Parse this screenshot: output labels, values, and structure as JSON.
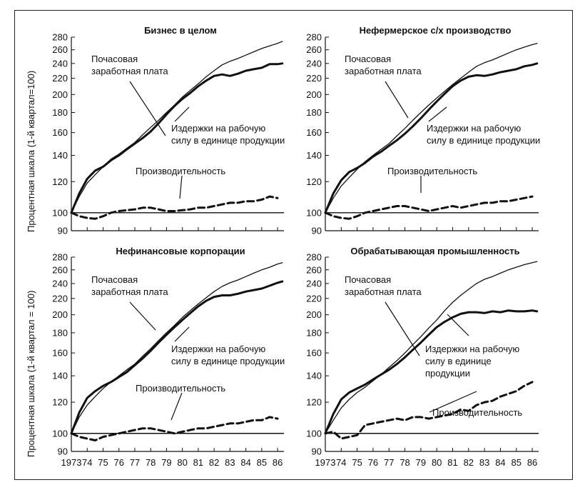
{
  "figure": {
    "ylabel_top": "Процентная шкала (1-й квартал=100)",
    "ylabel_bottom": "Процентная шкала (1-й квартал = 100)"
  },
  "chart_data": [
    {
      "type": "line",
      "title": "Бизнес в целом",
      "ylabel": "Процентная шкала (1-й квартал=100)",
      "yscale": "log",
      "ylim": [
        90,
        280
      ],
      "yticks": [
        90,
        100,
        120,
        140,
        160,
        180,
        200,
        220,
        240,
        260,
        280
      ],
      "xlim": [
        1973,
        1986.4
      ],
      "xticks": [
        "1973",
        "74",
        "75",
        "76",
        "77",
        "78",
        "79",
        "80",
        "81",
        "82",
        "83",
        "84",
        "85",
        "86"
      ],
      "show_xtick_labels": false,
      "series": [
        {
          "name": "Почасовая заработная плата",
          "style": "thin",
          "x": [
            1973,
            1973.5,
            1974,
            1974.5,
            1975,
            1975.5,
            1976,
            1976.5,
            1977,
            1977.5,
            1978,
            1978.5,
            1979,
            1979.5,
            1980,
            1980.5,
            1981,
            1981.5,
            1982,
            1982.5,
            1983,
            1983.5,
            1984,
            1984.5,
            1985,
            1985.5,
            1986,
            1986.3
          ],
          "values": [
            100,
            110,
            119,
            125,
            131,
            137,
            141,
            146,
            151,
            158,
            165,
            172,
            180,
            188,
            197,
            205,
            213,
            222,
            230,
            238,
            243,
            247,
            252,
            257,
            262,
            266,
            270,
            273
          ]
        },
        {
          "name": "Издержки на рабочую силу в единице продукции",
          "style": "thick",
          "x": [
            1973,
            1973.5,
            1974,
            1974.5,
            1975,
            1975.5,
            1976,
            1976.5,
            1977,
            1977.5,
            1978,
            1978.5,
            1979,
            1979.5,
            1980,
            1980.5,
            1981,
            1981.5,
            1982,
            1982.5,
            1983,
            1983.5,
            1984,
            1984.5,
            1985,
            1985.5,
            1986,
            1986.3
          ],
          "values": [
            100,
            112,
            122,
            128,
            131,
            136,
            140,
            145,
            150,
            155,
            161,
            169,
            178,
            187,
            195,
            202,
            210,
            217,
            223,
            225,
            223,
            226,
            230,
            232,
            234,
            239,
            239,
            240
          ]
        },
        {
          "name": "Производительность",
          "style": "dashed",
          "x": [
            1973,
            1973.5,
            1974,
            1974.5,
            1975,
            1975.5,
            1976,
            1976.5,
            1977,
            1977.5,
            1978,
            1978.5,
            1979,
            1979.5,
            1980,
            1980.5,
            1981,
            1981.5,
            1982,
            1982.5,
            1983,
            1983.5,
            1984,
            1984.5,
            1985,
            1985.5,
            1986
          ],
          "values": [
            100,
            98,
            97,
            96.5,
            98,
            100,
            101,
            101.5,
            102,
            103,
            103,
            102,
            101,
            101,
            101.5,
            102,
            103,
            103,
            104,
            105,
            106,
            106,
            107,
            107,
            108,
            110,
            109
          ]
        }
      ]
    },
    {
      "type": "line",
      "title": "Нефермерское с/х производство",
      "yscale": "log",
      "ylim": [
        90,
        280
      ],
      "yticks": [
        90,
        100,
        120,
        140,
        160,
        180,
        200,
        220,
        240,
        260,
        280
      ],
      "xlim": [
        1973,
        1986.4
      ],
      "xticks": [
        "1973",
        "74",
        "75",
        "76",
        "77",
        "78",
        "79",
        "80",
        "81",
        "82",
        "83",
        "84",
        "85",
        "86"
      ],
      "show_xtick_labels": false,
      "series": [
        {
          "name": "Почасовая заработная плата",
          "style": "thin",
          "x": [
            1973,
            1973.5,
            1974,
            1974.5,
            1975,
            1975.5,
            1976,
            1976.5,
            1977,
            1977.5,
            1978,
            1978.5,
            1979,
            1979.5,
            1980,
            1980.5,
            1981,
            1981.5,
            1982,
            1982.5,
            1983,
            1983.5,
            1984,
            1984.5,
            1985,
            1985.5,
            1986,
            1986.3
          ],
          "values": [
            100,
            109,
            117,
            123,
            129,
            135,
            140,
            145,
            150,
            157,
            164,
            172,
            180,
            188,
            196,
            204,
            212,
            220,
            228,
            236,
            241,
            245,
            250,
            255,
            260,
            264,
            268,
            270
          ]
        },
        {
          "name": "Издержки на рабочую силу в единице продукции",
          "style": "thick",
          "x": [
            1973,
            1973.5,
            1974,
            1974.5,
            1975,
            1975.5,
            1976,
            1976.5,
            1977,
            1977.5,
            1978,
            1978.5,
            1979,
            1979.5,
            1980,
            1980.5,
            1981,
            1981.5,
            1982,
            1982.5,
            1983,
            1983.5,
            1984,
            1984.5,
            1985,
            1985.5,
            1986,
            1986.3
          ],
          "values": [
            100,
            112,
            121,
            127,
            130,
            134,
            139,
            143,
            148,
            153,
            159,
            166,
            174,
            183,
            192,
            201,
            210,
            217,
            222,
            224,
            223,
            225,
            228,
            230,
            232,
            236,
            238,
            240
          ]
        },
        {
          "name": "Производительность",
          "style": "dashed",
          "x": [
            1973,
            1973.5,
            1974,
            1974.5,
            1975,
            1975.5,
            1976,
            1976.5,
            1977,
            1977.5,
            1978,
            1978.5,
            1979,
            1979.5,
            1980,
            1980.5,
            1981,
            1981.5,
            1982,
            1982.5,
            1983,
            1983.5,
            1984,
            1984.5,
            1985,
            1985.5,
            1986
          ],
          "values": [
            100,
            98,
            97,
            96.5,
            98,
            100,
            101,
            102,
            103,
            104,
            104,
            103,
            102,
            101,
            102,
            103,
            104,
            103,
            104,
            105,
            106,
            106,
            107,
            107,
            108,
            109,
            110
          ]
        }
      ]
    },
    {
      "type": "line",
      "title": "Нефинансовые корпорации",
      "ylabel": "Процентная шкала (1-й квартал = 100)",
      "yscale": "log",
      "ylim": [
        90,
        280
      ],
      "yticks": [
        90,
        100,
        120,
        140,
        160,
        180,
        200,
        220,
        240,
        260,
        280
      ],
      "xlim": [
        1973,
        1986.4
      ],
      "xticks": [
        "1973",
        "74",
        "75",
        "76",
        "77",
        "78",
        "79",
        "80",
        "81",
        "82",
        "83",
        "84",
        "85",
        "86"
      ],
      "show_xtick_labels": true,
      "series": [
        {
          "name": "Почасовая заработная плата",
          "style": "thin",
          "x": [
            1973,
            1973.5,
            1974,
            1974.5,
            1975,
            1975.5,
            1976,
            1976.5,
            1977,
            1977.5,
            1978,
            1978.5,
            1979,
            1979.5,
            1980,
            1980.5,
            1981,
            1981.5,
            1982,
            1982.5,
            1983,
            1983.5,
            1984,
            1984.5,
            1985,
            1985.5,
            1986,
            1986.3
          ],
          "values": [
            100,
            110,
            118,
            124,
            130,
            135,
            140,
            145,
            150,
            157,
            164,
            172,
            180,
            188,
            197,
            205,
            213,
            221,
            229,
            236,
            241,
            245,
            250,
            255,
            260,
            264,
            269,
            271
          ]
        },
        {
          "name": "Издержки на рабочую силу в единице продукции",
          "style": "thick",
          "x": [
            1973,
            1973.5,
            1974,
            1974.5,
            1975,
            1975.5,
            1976,
            1976.5,
            1977,
            1977.5,
            1978,
            1978.5,
            1979,
            1979.5,
            1980,
            1980.5,
            1981,
            1981.5,
            1982,
            1982.5,
            1983,
            1983.5,
            1984,
            1984.5,
            1985,
            1985.5,
            1986,
            1986.3
          ],
          "values": [
            100,
            113,
            123,
            128,
            132,
            135,
            139,
            143,
            149,
            155,
            162,
            170,
            178,
            186,
            194,
            202,
            210,
            217,
            222,
            224,
            224,
            226,
            229,
            231,
            233,
            237,
            241,
            243
          ]
        },
        {
          "name": "Производительность",
          "style": "dashed",
          "x": [
            1973,
            1973.5,
            1974,
            1974.5,
            1975,
            1975.5,
            1976,
            1976.5,
            1977,
            1977.5,
            1978,
            1978.5,
            1979,
            1979.5,
            1980,
            1980.5,
            1981,
            1981.5,
            1982,
            1982.5,
            1983,
            1983.5,
            1984,
            1984.5,
            1985,
            1985.5,
            1986
          ],
          "values": [
            100,
            98,
            97,
            96,
            98,
            99,
            100,
            101,
            102,
            103,
            103,
            102,
            101,
            100,
            101,
            102,
            103,
            103,
            104,
            105,
            106,
            106,
            107,
            108,
            108,
            110,
            109
          ]
        }
      ]
    },
    {
      "type": "line",
      "title": "Обрабатывающая промышленность",
      "yscale": "log",
      "ylim": [
        90,
        280
      ],
      "yticks": [
        90,
        100,
        120,
        140,
        160,
        180,
        200,
        220,
        240,
        260,
        280
      ],
      "xlim": [
        1973,
        1986.4
      ],
      "xticks": [
        "1973",
        "74",
        "75",
        "76",
        "77",
        "78",
        "79",
        "80",
        "81",
        "82",
        "83",
        "84",
        "85",
        "86"
      ],
      "show_xtick_labels": true,
      "series": [
        {
          "name": "Почасовая заработная плата",
          "style": "thin",
          "x": [
            1973,
            1973.5,
            1974,
            1974.5,
            1975,
            1975.5,
            1976,
            1976.5,
            1977,
            1977.5,
            1978,
            1978.5,
            1979,
            1979.5,
            1980,
            1980.5,
            1981,
            1981.5,
            1982,
            1982.5,
            1983,
            1983.5,
            1984,
            1984.5,
            1985,
            1985.5,
            1986,
            1986.3
          ],
          "values": [
            100,
            108,
            116,
            122,
            127,
            131,
            136,
            141,
            147,
            153,
            160,
            168,
            176,
            185,
            194,
            205,
            215,
            224,
            232,
            240,
            246,
            250,
            255,
            260,
            264,
            268,
            271,
            273
          ]
        },
        {
          "name": "Издержки на рабочую силу в единице продукции",
          "style": "thick",
          "x": [
            1973,
            1973.5,
            1974,
            1974.5,
            1975,
            1975.5,
            1976,
            1976.5,
            1977,
            1977.5,
            1978,
            1978.5,
            1979,
            1979.5,
            1980,
            1980.5,
            1981,
            1981.5,
            1982,
            1982.5,
            1983,
            1983.5,
            1984,
            1984.5,
            1985,
            1985.5,
            1986,
            1986.3
          ],
          "values": [
            100,
            112,
            122,
            127,
            130,
            133,
            137,
            141,
            145,
            150,
            156,
            163,
            170,
            178,
            186,
            192,
            197,
            201,
            203,
            203,
            202,
            204,
            203,
            205,
            204,
            204,
            205,
            204
          ]
        },
        {
          "name": "Производительность",
          "style": "dashed",
          "x": [
            1973,
            1973.5,
            1974,
            1974.5,
            1975,
            1975.5,
            1976,
            1976.5,
            1977,
            1977.5,
            1978,
            1978.5,
            1979,
            1979.5,
            1980,
            1980.5,
            1981,
            1981.5,
            1982,
            1982.5,
            1983,
            1983.5,
            1984,
            1984.5,
            1985,
            1985.5,
            1986
          ],
          "values": [
            100,
            101,
            97,
            98,
            99,
            105,
            106,
            107,
            108,
            109,
            108,
            110,
            110,
            109,
            110,
            111,
            112,
            115,
            114,
            118,
            120,
            121,
            124,
            126,
            128,
            132,
            135
          ]
        }
      ]
    }
  ],
  "annotations": [
    {
      "lines": [
        "Почасовая",
        "заработная плата"
      ]
    },
    {
      "lines": [
        "Издержки на рабочую",
        "силу в единице продукции"
      ]
    },
    {
      "lines": [
        "Производительность"
      ]
    },
    {
      "lines": [
        "Почасовая",
        "заработная плата"
      ]
    },
    {
      "lines": [
        "Издержки на рабочую",
        "силу в единице продукции"
      ]
    },
    {
      "lines": [
        "Производительность"
      ]
    },
    {
      "lines": [
        "Почасовая",
        "заработная плата"
      ]
    },
    {
      "lines": [
        "Издержки на рабочую",
        "силу в единице продукции"
      ]
    },
    {
      "lines": [
        "Производительность"
      ]
    },
    {
      "lines": [
        "Почасовая",
        "заработная плата"
      ]
    },
    {
      "lines": [
        "Издержки на рабочую",
        "силу в единице",
        "продукции"
      ]
    },
    {
      "lines": [
        "Производительность"
      ]
    }
  ]
}
